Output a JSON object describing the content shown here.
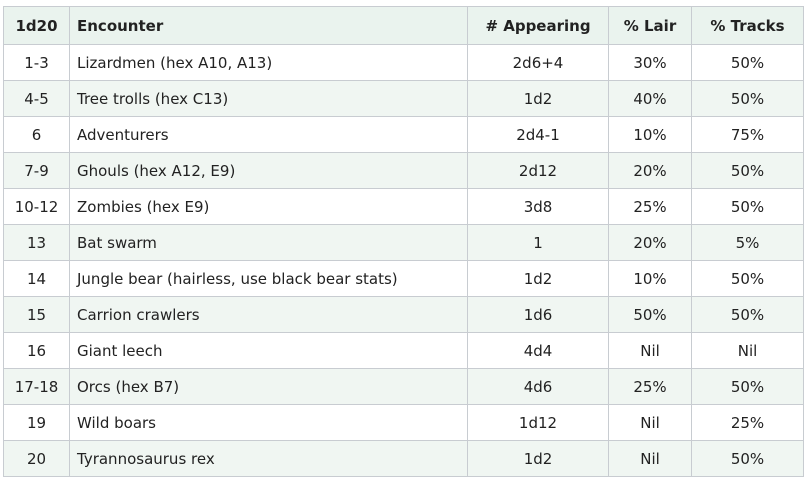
{
  "table": {
    "headers": {
      "die": "1d20",
      "encounter": "Encounter",
      "appearing": "# Appearing",
      "lair": "% Lair",
      "tracks": "% Tracks"
    },
    "rows": [
      {
        "die": "1-3",
        "encounter": "Lizardmen (hex A10, A13)",
        "appearing": "2d6+4",
        "lair": "30%",
        "tracks": "50%"
      },
      {
        "die": "4-5",
        "encounter": "Tree trolls (hex C13)",
        "appearing": "1d2",
        "lair": "40%",
        "tracks": "50%"
      },
      {
        "die": "6",
        "encounter": "Adventurers",
        "appearing": "2d4-1",
        "lair": "10%",
        "tracks": "75%"
      },
      {
        "die": "7-9",
        "encounter": "Ghouls (hex A12, E9)",
        "appearing": "2d12",
        "lair": "20%",
        "tracks": "50%"
      },
      {
        "die": "10-12",
        "encounter": "Zombies (hex E9)",
        "appearing": "3d8",
        "lair": "25%",
        "tracks": "50%"
      },
      {
        "die": "13",
        "encounter": "Bat swarm",
        "appearing": "1",
        "lair": "20%",
        "tracks": "5%"
      },
      {
        "die": "14",
        "encounter": "Jungle bear (hairless, use black bear stats)",
        "appearing": "1d2",
        "lair": "10%",
        "tracks": "50%"
      },
      {
        "die": "15",
        "encounter": "Carrion crawlers",
        "appearing": "1d6",
        "lair": "50%",
        "tracks": "50%"
      },
      {
        "die": "16",
        "encounter": "Giant leech",
        "appearing": "4d4",
        "lair": "Nil",
        "tracks": "Nil"
      },
      {
        "die": "17-18",
        "encounter": "Orcs (hex B7)",
        "appearing": "4d6",
        "lair": "25%",
        "tracks": "50%"
      },
      {
        "die": "19",
        "encounter": "Wild boars",
        "appearing": "1d12",
        "lair": "Nil",
        "tracks": "25%"
      },
      {
        "die": "20",
        "encounter": "Tyrannosaurus rex",
        "appearing": "1d2",
        "lair": "Nil",
        "tracks": "50%"
      }
    ]
  }
}
